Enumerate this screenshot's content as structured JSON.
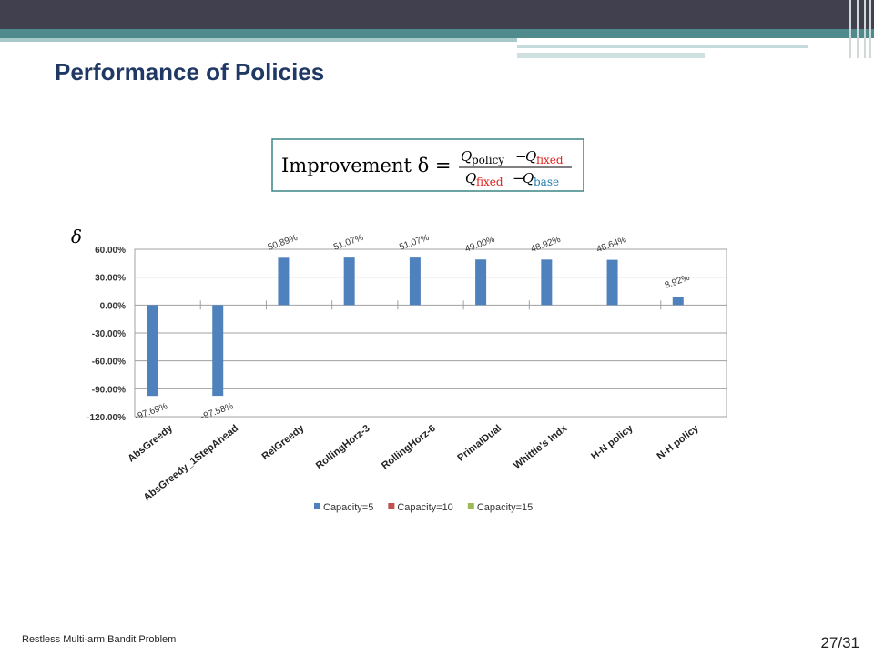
{
  "slide": {
    "title": "Performance of Policies",
    "footer": "Restless Multi-arm Bandit Problem",
    "page": "27/31"
  },
  "formula": {
    "lead": "Improvement δ =",
    "q": "Q",
    "minus": "−",
    "policy": "policy",
    "fixed": "fixed",
    "base": "base"
  },
  "chart_data": {
    "type": "bar",
    "y_label": "δ",
    "categories": [
      "AbsGreedy",
      "AbsGreedy_1StepAhead",
      "RelGreedy",
      "RollingHorz-3",
      "RollingHorz-6",
      "PrimalDual",
      "Whittle's Indx",
      "H-N policy",
      "N-H policy"
    ],
    "series": [
      {
        "name": "Capacity=5",
        "color": "#4f81bd",
        "values": [
          -97.69,
          -97.58,
          50.89,
          51.07,
          51.07,
          49.0,
          48.92,
          48.64,
          8.92
        ],
        "value_labels": [
          "-97.69%",
          "-97.58%",
          "50.89%",
          "51.07%",
          "51.07%",
          "49.00%",
          "48.92%",
          "48.64%",
          "8.92%"
        ]
      },
      {
        "name": "Capacity=10",
        "color": "#c0504d",
        "values": [
          null,
          null,
          null,
          null,
          null,
          null,
          null,
          null,
          null
        ]
      },
      {
        "name": "Capacity=15",
        "color": "#9bbb59",
        "values": [
          null,
          null,
          null,
          null,
          null,
          null,
          null,
          null,
          null
        ]
      }
    ],
    "ylim": [
      -120,
      60
    ],
    "yticks": [
      {
        "value": 60,
        "label": "60.00%"
      },
      {
        "value": 30,
        "label": "30.00%"
      },
      {
        "value": 0,
        "label": "0.00%"
      },
      {
        "value": -30,
        "label": "-30.00%"
      },
      {
        "value": -60,
        "label": "-60.00%"
      },
      {
        "value": -90,
        "label": "-90.00%"
      },
      {
        "value": -120,
        "label": "-120.00%"
      }
    ],
    "grid": true,
    "legend": "bottom"
  }
}
